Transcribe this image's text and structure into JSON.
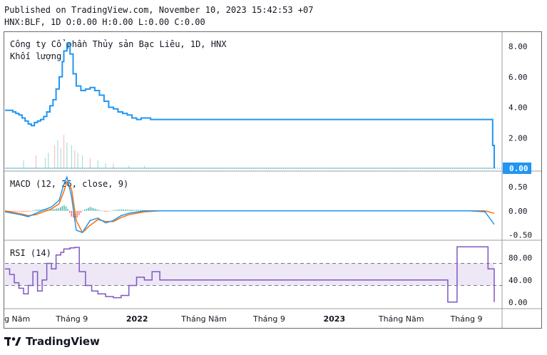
{
  "header": {
    "published": "Published on TradingView.com, November 10, 2023 15:42:53 +07",
    "ohlc": "HNX:BLF, 1D O:0.00 H:0.00 L:0.00 C:0.00"
  },
  "brand": {
    "name": "TradingView"
  },
  "colors": {
    "price": "#2196f3",
    "volume_up": "#26a69a",
    "volume_down": "#ef5350",
    "macd": "#2196f3",
    "signal": "#ff6d00",
    "rsi": "#7e57c2",
    "rsi_band": "#ede7f6",
    "hist_pos": "#26a69a",
    "hist_neg": "#ef5350"
  },
  "chart_data": [
    {
      "type": "line",
      "title": "Công ty Cổ phần Thủy sản Bạc Liêu, 1D, HNX",
      "subtitle": "Khối lượng",
      "ylim": [
        0,
        8.8
      ],
      "yticks": [
        "8.00",
        "6.00",
        "4.00",
        "2.00"
      ],
      "last_value_label": "0.00",
      "x": [
        0,
        0.03,
        0.05,
        0.07,
        0.09,
        0.11,
        0.13,
        0.15,
        0.17,
        0.19,
        0.21,
        0.23,
        0.25,
        0.27,
        0.29,
        0.31,
        0.33,
        0.35,
        0.37,
        0.38,
        0.4,
        0.42,
        0.44,
        0.46,
        0.49,
        0.52,
        0.55,
        0.58,
        0.61,
        0.64,
        0.67,
        0.7,
        0.73,
        0.76,
        0.79,
        0.82,
        0.85,
        0.88,
        0.91,
        0.94,
        0.97,
        1.0,
        1.12,
        1.3,
        1.6,
        1.9,
        2.2,
        2.5,
        2.8,
        3.0,
        3.1,
        3.15,
        3.16
      ],
      "values": [
        3.8,
        3.8,
        3.7,
        3.6,
        3.5,
        3.3,
        3.1,
        2.9,
        2.8,
        3.0,
        3.1,
        3.2,
        3.4,
        3.7,
        4.1,
        4.5,
        5.2,
        6.0,
        7.0,
        7.7,
        8.2,
        7.5,
        6.2,
        5.4,
        5.1,
        5.2,
        5.3,
        5.1,
        4.8,
        4.4,
        4.0,
        3.9,
        3.7,
        3.6,
        3.5,
        3.3,
        3.2,
        3.3,
        3.3,
        3.2,
        3.2,
        3.2,
        3.2,
        3.2,
        3.2,
        3.2,
        3.2,
        3.2,
        3.2,
        3.2,
        3.2,
        1.5,
        0.0
      ]
    },
    {
      "type": "bar",
      "title": "Khối lượng",
      "x": [
        0.12,
        0.2,
        0.26,
        0.28,
        0.32,
        0.34,
        0.36,
        0.38,
        0.4,
        0.43,
        0.45,
        0.47,
        0.5,
        0.55,
        0.6,
        0.65,
        0.7,
        0.8,
        0.9
      ],
      "values": [
        0.3,
        0.5,
        0.4,
        0.6,
        0.9,
        1.1,
        0.8,
        1.3,
        1.0,
        0.9,
        0.7,
        0.6,
        0.5,
        0.4,
        0.3,
        0.2,
        0.2,
        0.1,
        0.1
      ]
    },
    {
      "type": "line",
      "title": "MACD (12, 26, close, 9)",
      "ylim": [
        -0.55,
        0.75
      ],
      "yticks": [
        "0.50",
        "0.00",
        "-0.50"
      ],
      "series": [
        {
          "name": "MACD",
          "x": [
            0,
            0.05,
            0.1,
            0.15,
            0.2,
            0.25,
            0.3,
            0.35,
            0.38,
            0.4,
            0.43,
            0.46,
            0.5,
            0.55,
            0.6,
            0.65,
            0.7,
            0.75,
            0.8,
            0.9,
            1.0,
            1.5,
            2.0,
            2.5,
            3.0,
            3.1,
            3.16
          ],
          "values": [
            -0.02,
            -0.05,
            -0.08,
            -0.12,
            -0.05,
            0.02,
            0.08,
            0.22,
            0.55,
            0.7,
            0.3,
            -0.4,
            -0.45,
            -0.2,
            -0.15,
            -0.25,
            -0.2,
            -0.1,
            -0.05,
            0.0,
            0.0,
            0.0,
            0.0,
            0.0,
            0.0,
            -0.02,
            -0.28
          ]
        },
        {
          "name": "Signal",
          "x": [
            0,
            0.05,
            0.1,
            0.15,
            0.2,
            0.25,
            0.3,
            0.35,
            0.38,
            0.4,
            0.43,
            0.46,
            0.5,
            0.55,
            0.6,
            0.65,
            0.7,
            0.75,
            0.8,
            0.9,
            1.0,
            1.5,
            2.0,
            2.5,
            3.0,
            3.1,
            3.16
          ],
          "values": [
            0.0,
            -0.03,
            -0.06,
            -0.1,
            -0.08,
            -0.02,
            0.04,
            0.15,
            0.4,
            0.6,
            0.45,
            -0.2,
            -0.45,
            -0.3,
            -0.18,
            -0.22,
            -0.22,
            -0.14,
            -0.08,
            -0.02,
            0.0,
            0.0,
            0.0,
            0.0,
            0.0,
            0.0,
            -0.05
          ]
        }
      ]
    },
    {
      "type": "line",
      "title": "RSI (14)",
      "ylim": [
        -8,
        108
      ],
      "yticks": [
        "80.00",
        "40.00",
        "0.00"
      ],
      "bands": [
        70,
        30
      ],
      "x": [
        0,
        0.03,
        0.06,
        0.09,
        0.12,
        0.15,
        0.18,
        0.21,
        0.24,
        0.27,
        0.3,
        0.33,
        0.36,
        0.38,
        0.42,
        0.45,
        0.48,
        0.52,
        0.56,
        0.6,
        0.65,
        0.7,
        0.75,
        0.8,
        0.85,
        0.9,
        0.95,
        1.0,
        1.5,
        2.0,
        2.5,
        2.85,
        2.86,
        2.9,
        2.92,
        3.1,
        3.12,
        3.16
      ],
      "values": [
        60,
        50,
        35,
        25,
        15,
        30,
        55,
        20,
        40,
        70,
        60,
        85,
        90,
        96,
        98,
        99,
        55,
        30,
        20,
        15,
        10,
        8,
        12,
        30,
        45,
        40,
        55,
        40,
        40,
        40,
        40,
        40,
        0,
        0,
        100,
        100,
        60,
        0
      ]
    }
  ],
  "xaxis": {
    "labels": [
      {
        "x": 0.0,
        "text": "g Năm",
        "bold": false
      },
      {
        "x": 0.38,
        "text": "Tháng 9",
        "bold": false
      },
      {
        "x": 0.75,
        "text": "2022",
        "bold": true
      },
      {
        "x": 1.13,
        "text": "Tháng Năm",
        "bold": false
      },
      {
        "x": 1.5,
        "text": "Tháng 9",
        "bold": false
      },
      {
        "x": 1.87,
        "text": "2023",
        "bold": true
      },
      {
        "x": 2.25,
        "text": "Tháng Năm",
        "bold": false
      },
      {
        "x": 2.62,
        "text": "Tháng 9",
        "bold": false
      }
    ]
  }
}
